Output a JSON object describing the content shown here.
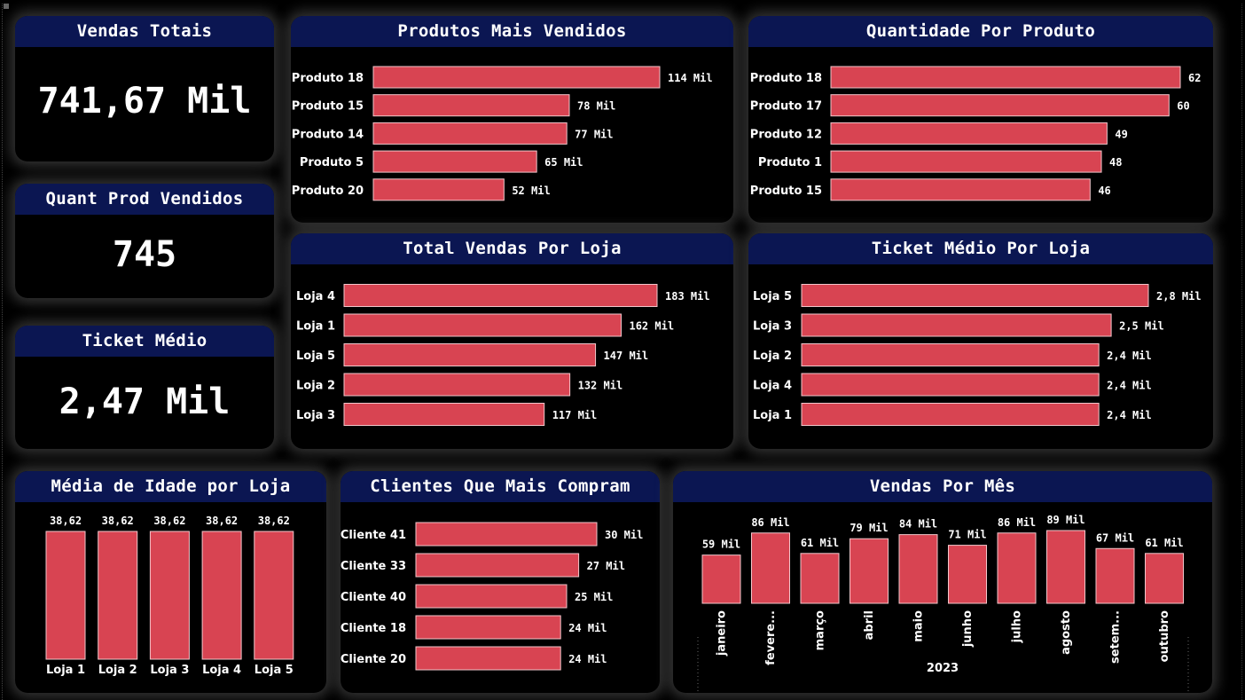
{
  "kpis": {
    "vendas_totais": {
      "title": "Vendas Totais",
      "value": "741,67 Mil"
    },
    "quant_prod": {
      "title": "Quant Prod Vendidos",
      "value": "745"
    },
    "ticket_medio": {
      "title": "Ticket Médio",
      "value": "2,47 Mil"
    }
  },
  "colors": {
    "bar": "#d84452",
    "header": "#0b1652",
    "background": "#000000"
  },
  "chart_data": [
    {
      "id": "produtos",
      "type": "bar",
      "orientation": "horizontal",
      "title": "Produtos Mais Vendidos",
      "categories": [
        "Produto 18",
        "Produto 15",
        "Produto 14",
        "Produto 5",
        "Produto 20"
      ],
      "values": [
        114,
        78,
        77,
        65,
        52
      ],
      "labels": [
        "114 Mil",
        "78 Mil",
        "77 Mil",
        "65 Mil",
        "52 Mil"
      ]
    },
    {
      "id": "quantidade",
      "type": "bar",
      "orientation": "horizontal",
      "title": "Quantidade Por Produto",
      "categories": [
        "Produto 18",
        "Produto 17",
        "Produto 12",
        "Produto 1",
        "Produto 15"
      ],
      "values": [
        62,
        60,
        49,
        48,
        46
      ],
      "labels": [
        "62",
        "60",
        "49",
        "48",
        "46"
      ]
    },
    {
      "id": "vendasloja",
      "type": "bar",
      "orientation": "horizontal",
      "title": "Total Vendas Por Loja",
      "categories": [
        "Loja 4",
        "Loja 1",
        "Loja 5",
        "Loja 2",
        "Loja 3"
      ],
      "values": [
        183,
        162,
        147,
        132,
        117
      ],
      "labels": [
        "183 Mil",
        "162 Mil",
        "147 Mil",
        "132 Mil",
        "117 Mil"
      ]
    },
    {
      "id": "ticketloja",
      "type": "bar",
      "orientation": "horizontal",
      "title": "Ticket Médio Por Loja",
      "categories": [
        "Loja 5",
        "Loja 3",
        "Loja 2",
        "Loja 4",
        "Loja 1"
      ],
      "values": [
        2.8,
        2.5,
        2.4,
        2.4,
        2.4
      ],
      "labels": [
        "2,8 Mil",
        "2,5 Mil",
        "2,4 Mil",
        "2,4 Mil",
        "2,4 Mil"
      ]
    },
    {
      "id": "idade",
      "type": "bar",
      "orientation": "vertical",
      "title": "Média de Idade por Loja",
      "categories": [
        "Loja 1",
        "Loja 2",
        "Loja 3",
        "Loja 4",
        "Loja 5"
      ],
      "values": [
        38.62,
        38.62,
        38.62,
        38.62,
        38.62
      ],
      "labels": [
        "38,62",
        "38,62",
        "38,62",
        "38,62",
        "38,62"
      ]
    },
    {
      "id": "clientes",
      "type": "bar",
      "orientation": "horizontal",
      "title": "Clientes Que Mais Compram",
      "categories": [
        "Cliente 41",
        "Cliente 33",
        "Cliente 40",
        "Cliente 18",
        "Cliente 20"
      ],
      "values": [
        30,
        27,
        25,
        24,
        24
      ],
      "labels": [
        "30 Mil",
        "27 Mil",
        "25 Mil",
        "24 Mil",
        "24 Mil"
      ]
    },
    {
      "id": "mes",
      "type": "bar",
      "orientation": "vertical",
      "title": "Vendas Por Mês",
      "categories": [
        "janeiro",
        "fevere...",
        "março",
        "abril",
        "maio",
        "junho",
        "julho",
        "agosto",
        "setem...",
        "outubro"
      ],
      "values": [
        59,
        86,
        61,
        79,
        84,
        71,
        86,
        89,
        67,
        61
      ],
      "labels": [
        "59 Mil",
        "86 Mil",
        "61 Mil",
        "79 Mil",
        "84 Mil",
        "71 Mil",
        "86 Mil",
        "89 Mil",
        "67 Mil",
        "61 Mil"
      ],
      "xlabel": "2023"
    }
  ]
}
